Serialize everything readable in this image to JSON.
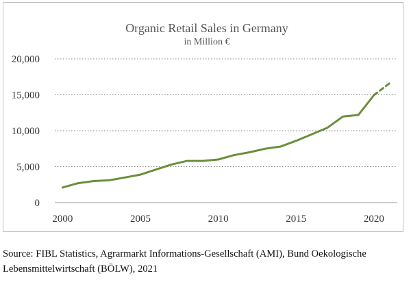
{
  "chart_data": {
    "type": "line",
    "title": "Organic Retail Sales in Germany",
    "subtitle": "in Million €",
    "xlabel": "",
    "ylabel": "",
    "xlim": [
      2000,
      2021
    ],
    "ylim": [
      0,
      20000
    ],
    "x_ticks": [
      "2000",
      "2005",
      "2010",
      "2015",
      "2020"
    ],
    "y_ticks": [
      "0",
      "5,000",
      "10,000",
      "15,000",
      "20,000"
    ],
    "grid": "horizontal dotted",
    "legend": "none",
    "series": [
      {
        "color": "#6b8e3a",
        "style": "solid",
        "x": [
          2000,
          2001,
          2002,
          2003,
          2004,
          2005,
          2006,
          2007,
          2008,
          2009,
          2010,
          2011,
          2012,
          2013,
          2014,
          2015,
          2016,
          2017,
          2018,
          2019,
          2020
        ],
        "values": [
          2100,
          2700,
          3000,
          3100,
          3500,
          3900,
          4600,
          5300,
          5800,
          5800,
          6000,
          6600,
          7000,
          7500,
          7800,
          8600,
          9500,
          10400,
          11970,
          12200,
          14950
        ]
      },
      {
        "color": "#6b8e3a",
        "style": "dashed",
        "x": [
          2020,
          2021
        ],
        "values": [
          14950,
          16600
        ]
      }
    ]
  },
  "source": "Source: FIBL Statistics, Agrarmarkt Informations-Gesellschaft (AMI), Bund Oekologische Lebensmittelwirtschaft (BÖLW), 2021"
}
